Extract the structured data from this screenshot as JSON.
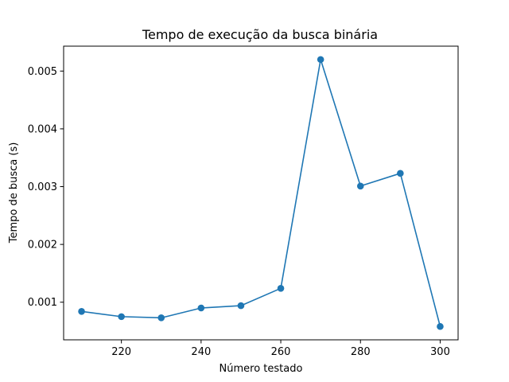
{
  "chart_data": {
    "type": "line",
    "title": "Tempo de execução da busca binária",
    "xlabel": "Número testado",
    "ylabel": "Tempo de busca (s)",
    "x": [
      210,
      220,
      230,
      240,
      250,
      260,
      270,
      280,
      290,
      300
    ],
    "series": [
      {
        "values": [
          0.00084,
          0.00075,
          0.00073,
          0.0009,
          0.00094,
          0.00124,
          0.0052,
          0.00301,
          0.00323,
          0.00058
        ],
        "color": "#1f77b4",
        "marker": "circle"
      }
    ],
    "xticks": [
      "220",
      "240",
      "260",
      "280",
      "300"
    ],
    "yticks": [
      "0.001",
      "0.002",
      "0.003",
      "0.004",
      "0.005"
    ],
    "xlim": [
      205.5,
      304.5
    ],
    "ylim": [
      0.000349,
      0.005431
    ],
    "grid": false,
    "legend": "none"
  }
}
